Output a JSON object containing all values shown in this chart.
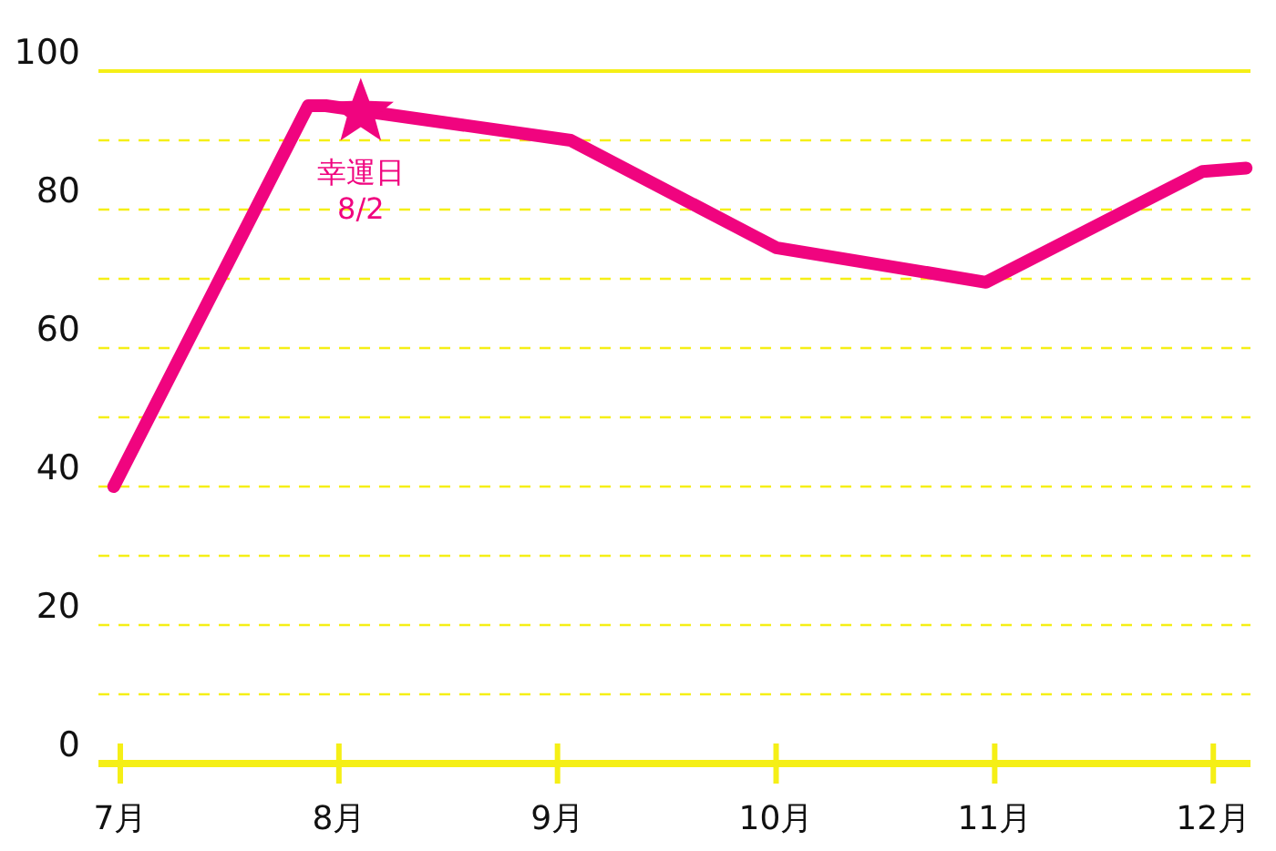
{
  "chart_data": {
    "type": "line",
    "x": [
      6.97,
      7.86,
      7.94,
      9.06,
      10.0,
      10.96,
      11.95,
      12.15
    ],
    "series": [
      {
        "color": "#f0047f",
        "values": [
          40,
          95,
          95,
          90,
          74.5,
          69.5,
          85.5,
          86
        ]
      }
    ],
    "xlim": [
      6.9,
      12.17
    ],
    "xticks": [
      {
        "value": 7,
        "label": "7月"
      },
      {
        "value": 8,
        "label": "8月"
      },
      {
        "value": 9,
        "label": "9月"
      },
      {
        "value": 10,
        "label": "10月"
      },
      {
        "value": 11,
        "label": "11月"
      },
      {
        "value": 12,
        "label": "12月"
      }
    ],
    "ylim": [
      0,
      100
    ],
    "yticks": [
      0,
      {
        "value": 10,
        "label": null
      },
      20,
      {
        "value": 30,
        "label": null
      },
      40,
      {
        "value": 50,
        "label": null
      },
      60,
      {
        "value": 70,
        "label": null
      },
      80,
      {
        "value": 90,
        "label": null
      },
      100
    ],
    "grid": "y",
    "marker": "none",
    "line_style": "solid",
    "annotations": [
      {
        "text": "幸運日\n8/2",
        "x": 8.1,
        "y": 94
      }
    ]
  }
}
